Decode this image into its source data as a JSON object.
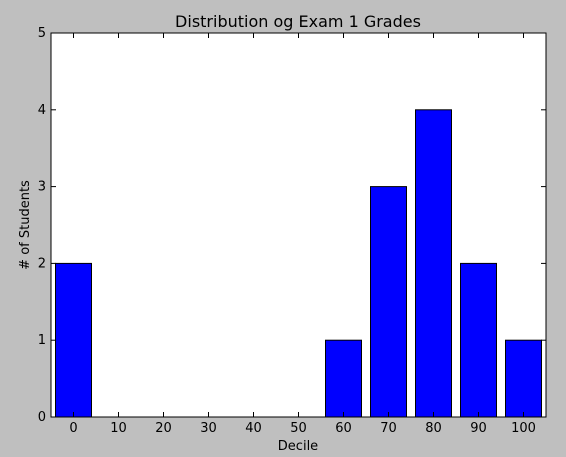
{
  "chart_data": {
    "type": "bar",
    "title": "Distribution og Exam 1 Grades",
    "xlabel": "Decile",
    "ylabel": "# of Students",
    "categories": [
      "0",
      "10",
      "20",
      "30",
      "40",
      "50",
      "60",
      "70",
      "80",
      "90",
      "100"
    ],
    "values": [
      2,
      0,
      0,
      0,
      0,
      0,
      1,
      3,
      4,
      2,
      1
    ],
    "ylim": [
      0,
      5
    ],
    "yticks": [
      "0",
      "1",
      "2",
      "3",
      "4",
      "5"
    ],
    "grid": false,
    "legend": "none",
    "colors": {
      "bar_fill": "#0000ff",
      "bar_edge": "#000000",
      "plot_background": "#ffffff",
      "figure_background": "#bfbfbf"
    }
  }
}
